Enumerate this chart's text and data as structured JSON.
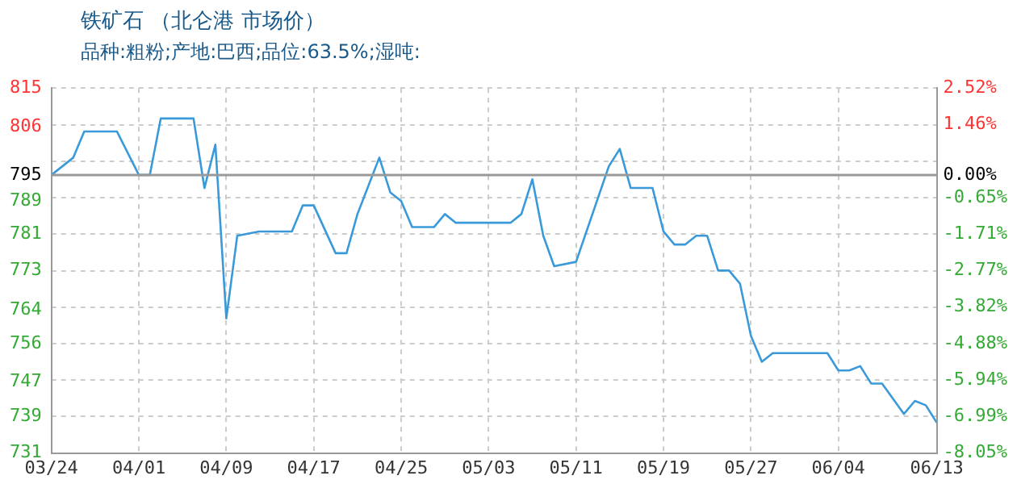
{
  "chart_data": {
    "type": "line",
    "title": "铁矿石 （北仑港 市场价）",
    "subtitle": "品种:粗粉;产地:巴西;品位:63.5%;湿吨:",
    "x": [
      "--03-24",
      "--03-26",
      "--03-27",
      "--03-30",
      "--04-01",
      "--04-02",
      "--04-03",
      "--04-06",
      "--04-07",
      "--04-08",
      "--04-09",
      "--04-10",
      "--04-12",
      "--04-15",
      "--04-16",
      "--04-17",
      "--04-19",
      "--04-20",
      "--04-21",
      "--04-23",
      "--04-24",
      "--04-25",
      "--04-26",
      "--04-28",
      "--04-29",
      "--04-30",
      "--05-05",
      "--05-06",
      "--05-07",
      "--05-08",
      "--05-09",
      "--05-11",
      "--05-14",
      "--05-15",
      "--05-16",
      "--05-18",
      "--05-19",
      "--05-20",
      "--05-21",
      "--05-22",
      "--05-23",
      "--05-24",
      "--05-25",
      "--05-26",
      "--05-27",
      "--05-28",
      "--05-29",
      "--06-03",
      "--06-04",
      "--06-05",
      "--06-06",
      "--06-07",
      "--06-08",
      "--06-10",
      "--06-11",
      "--06-12",
      "--06-13"
    ],
    "series": [
      {
        "color": "#3a9ad9",
        "values": [
          795,
          799,
          805,
          805,
          795,
          795,
          808,
          808,
          792,
          802,
          762,
          781,
          782,
          782,
          788,
          788,
          777,
          777,
          786,
          799,
          791,
          789,
          783,
          783,
          786,
          784,
          784,
          786,
          794,
          781,
          774,
          775,
          797,
          801,
          792,
          792,
          782,
          779,
          779,
          781,
          781,
          773,
          773,
          770,
          758,
          752,
          754,
          754,
          750,
          750,
          751,
          747,
          747,
          740,
          743,
          742,
          738
        ]
      }
    ],
    "xlim": [
      "--03-24",
      "--06-13"
    ],
    "xticks": [
      {
        "value": "--03-24",
        "label": "03/24"
      },
      {
        "value": "--04-01",
        "label": "04/01"
      },
      {
        "value": "--04-09",
        "label": "04/09"
      },
      {
        "value": "--04-17",
        "label": "04/17"
      },
      {
        "value": "--04-25",
        "label": "04/25"
      },
      {
        "value": "--05-03",
        "label": "05/03"
      },
      {
        "value": "--05-11",
        "label": "05/11"
      },
      {
        "value": "--05-19",
        "label": "05/19"
      },
      {
        "value": "--05-27",
        "label": "05/27"
      },
      {
        "value": "--06-04",
        "label": "06/04"
      },
      {
        "value": "--06-13",
        "label": "06/13"
      }
    ],
    "ylim": [
      731,
      815
    ],
    "yticks": [
      731,
      {
        "value": 739.4,
        "label": "739"
      },
      {
        "value": 747.4,
        "label": "747"
      },
      {
        "value": 756.2,
        "label": "756"
      },
      764,
      773,
      {
        "value": 781.4,
        "label": "781"
      },
      789,
      795,
      806,
      815
    ],
    "y2lim": [
      -8.05,
      2.52
    ],
    "y2ticks": [
      {
        "value": -8.05,
        "label": "-8.05%"
      },
      {
        "value": -6.99,
        "label": "-6.99%"
      },
      {
        "value": -5.94,
        "label": "-5.94%"
      },
      {
        "value": -4.88,
        "label": "-4.88%"
      },
      {
        "value": -3.82,
        "label": "-3.82%"
      },
      {
        "value": -2.77,
        "label": "-2.77%"
      },
      {
        "value": -1.71,
        "label": "-1.71%"
      },
      {
        "value": -0.65,
        "label": "-0.65%"
      },
      {
        "value": 0,
        "label": "0.00%"
      },
      {
        "value": 0.4,
        "label": null
      },
      {
        "value": 1.46,
        "label": "1.46%"
      },
      {
        "value": 2.52,
        "label": "2.52%"
      }
    ],
    "ref_lines": [
      {
        "axis": "y",
        "value": 795,
        "color": "#999999"
      }
    ],
    "grid": true,
    "legend": false,
    "marker": "none",
    "line_style": "solid"
  }
}
